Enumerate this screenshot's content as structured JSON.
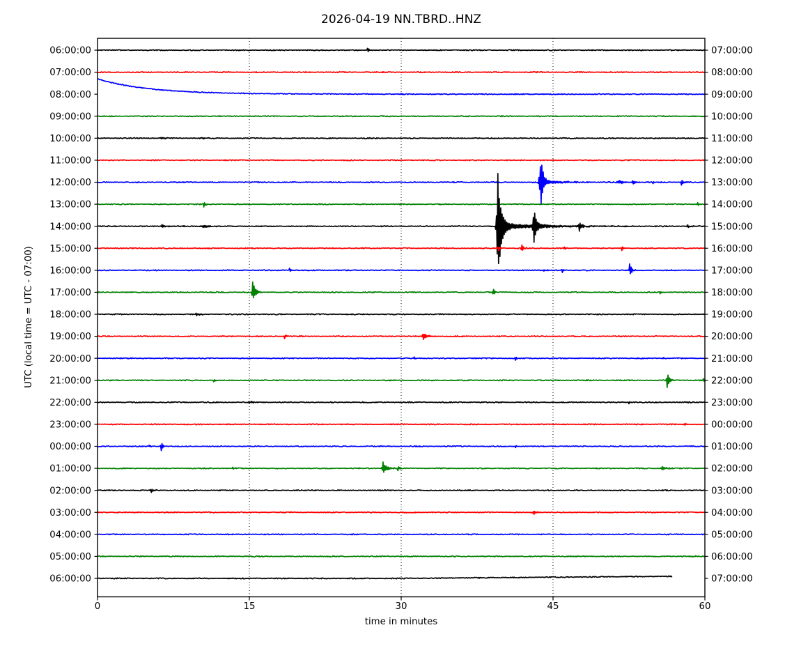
{
  "title": "2026-04-19 NN.TBRD..HNZ",
  "chart_data": {
    "type": "line",
    "variant": "helicorder_dayplot",
    "title": "2026-04-19 NN.TBRD..HNZ",
    "xlabel": "time in minutes",
    "ylabel": "UTC (local time = UTC - 07:00)",
    "x_ticks": [
      "0",
      "15",
      "30",
      "45",
      "60"
    ],
    "x_tick_minutes": [
      0,
      15,
      30,
      45,
      60
    ],
    "xlim": [
      0,
      60
    ],
    "minutes_per_row": 60,
    "grid_minutes": [
      15,
      30,
      45
    ],
    "grid_style": "dotted-vertical",
    "legend": "none",
    "color_cycle": [
      "#000000",
      "#ff0000",
      "#0000ff",
      "#008000"
    ],
    "rows": [
      {
        "left": "06:00:00",
        "right": "07:00:00",
        "color": "#000000",
        "events": [
          {
            "t": 26.7,
            "a": 3,
            "atk": 0.15,
            "dec": 0.15
          }
        ]
      },
      {
        "left": "07:00:00",
        "right": "08:00:00",
        "color": "#ff0000",
        "events": []
      },
      {
        "left": "08:00:00",
        "right": "09:00:00",
        "color": "#0000ff",
        "drift": {
          "amp": 22,
          "tau": 5
        },
        "events": []
      },
      {
        "left": "09:00:00",
        "right": "10:00:00",
        "color": "#008000",
        "events": []
      },
      {
        "left": "10:00:00",
        "right": "11:00:00",
        "color": "#000000",
        "events": [
          {
            "t": 6.3,
            "a": 1.2,
            "atk": 0.4,
            "dec": 0.4
          },
          {
            "t": 10.4,
            "a": 1.0,
            "atk": 0.5,
            "dec": 0.5
          }
        ]
      },
      {
        "left": "11:00:00",
        "right": "12:00:00",
        "color": "#ff0000",
        "events": []
      },
      {
        "left": "12:00:00",
        "right": "13:00:00",
        "color": "#0000ff",
        "events": [
          {
            "t": 43.8,
            "u": 36,
            "dn": 30,
            "atk": 0.35,
            "dec": 0.22,
            "tail": 1.8,
            "ttau": 2.5
          },
          {
            "t": 51.6,
            "a": 2.2,
            "atk": 0.5,
            "dec": 0.5
          },
          {
            "t": 52.9,
            "a": 2.2,
            "atk": 0.3,
            "dec": 0.3
          },
          {
            "t": 54.9,
            "a": 1.8
          },
          {
            "t": 57.7,
            "a": 4.5,
            "atk": 0.15,
            "dec": 0.15
          }
        ]
      },
      {
        "left": "13:00:00",
        "right": "14:00:00",
        "color": "#008000",
        "events": [
          {
            "t": 10.5,
            "a": 3.5,
            "atk": 0.15,
            "dec": 0.15
          },
          {
            "t": 59.3,
            "a": 2.5
          }
        ]
      },
      {
        "left": "14:00:00",
        "right": "15:00:00",
        "color": "#000000",
        "events": [
          {
            "t": 6.4,
            "a": 2.2,
            "atk": 0.3,
            "dec": 0.3
          },
          {
            "t": 10.5,
            "a": 1.6,
            "atk": 0.6,
            "dec": 0.6
          },
          {
            "t": 39.55,
            "u": 72,
            "dn": 82,
            "atk": 0.28,
            "dec": 0.3,
            "tail": 4,
            "ttau": 4.5
          },
          {
            "t": 43.1,
            "u": 24,
            "dn": 21,
            "atk": 0.22,
            "dec": 0.22,
            "tail": 1.4,
            "ttau": 0.9
          },
          {
            "t": 47.6,
            "u": 7,
            "dn": 6,
            "atk": 0.15,
            "dec": 0.18
          },
          {
            "t": 58.3,
            "a": 1.8
          }
        ]
      },
      {
        "left": "15:00:00",
        "right": "16:00:00",
        "color": "#ff0000",
        "events": [
          {
            "t": 39.6,
            "a": 3,
            "atk": 0.12,
            "dec": 0.12
          },
          {
            "t": 41.9,
            "a": 5,
            "atk": 0.15,
            "dec": 0.18
          },
          {
            "t": 46.1,
            "a": 2.2
          },
          {
            "t": 51.8,
            "a": 3.5,
            "atk": 0.12,
            "dec": 0.15
          }
        ]
      },
      {
        "left": "16:00:00",
        "right": "17:00:00",
        "color": "#0000ff",
        "events": [
          {
            "t": 19.0,
            "a": 2.8
          },
          {
            "t": 44.1,
            "a": 1.8
          },
          {
            "t": 45.9,
            "a": 2.8
          },
          {
            "t": 52.6,
            "a": 9,
            "atk": 0.15,
            "dec": 0.18
          }
        ]
      },
      {
        "left": "17:00:00",
        "right": "18:00:00",
        "color": "#008000",
        "events": [
          {
            "t": 15.35,
            "u": 15,
            "dn": 13,
            "atk": 0.2,
            "dec": 0.22,
            "tail": 0.8,
            "ttau": 0.7
          },
          {
            "t": 39.1,
            "a": 3.5,
            "atk": 0.15,
            "dec": 0.15
          },
          {
            "t": 55.6,
            "a": 1.8
          }
        ]
      },
      {
        "left": "18:00:00",
        "right": "19:00:00",
        "color": "#000000",
        "events": [
          {
            "t": 9.8,
            "a": 1.4,
            "atk": 0.5,
            "dec": 0.5
          }
        ]
      },
      {
        "left": "19:00:00",
        "right": "20:00:00",
        "color": "#ff0000",
        "events": [
          {
            "t": 18.5,
            "a": 3.5,
            "atk": 0.12,
            "dec": 0.14
          },
          {
            "t": 32.2,
            "a": 4.5,
            "atk": 0.3,
            "dec": 0.35
          }
        ]
      },
      {
        "left": "20:00:00",
        "right": "21:00:00",
        "color": "#0000ff",
        "events": [
          {
            "t": 31.3,
            "a": 1.8
          },
          {
            "t": 41.3,
            "a": 2.2
          },
          {
            "t": 55.9,
            "a": 1.4
          }
        ]
      },
      {
        "left": "21:00:00",
        "right": "22:00:00",
        "color": "#008000",
        "events": [
          {
            "t": 11.5,
            "a": 1.8
          },
          {
            "t": 56.3,
            "a": 10.5,
            "atk": 0.18,
            "dec": 0.2
          },
          {
            "t": 59.85,
            "a": 2.8,
            "atk": 0.2,
            "dec": 0.2
          }
        ]
      },
      {
        "left": "22:00:00",
        "right": "23:00:00",
        "color": "#000000",
        "events": [
          {
            "t": 15.0,
            "a": 1.3,
            "atk": 0.4,
            "dec": 0.4
          },
          {
            "t": 52.5,
            "a": 1.8
          }
        ]
      },
      {
        "left": "23:00:00",
        "right": "00:00:00",
        "color": "#ff0000",
        "events": [
          {
            "t": 58.0,
            "a": 1.8
          }
        ]
      },
      {
        "left": "00:00:00",
        "right": "01:00:00",
        "color": "#0000ff",
        "events": [
          {
            "t": 5.1,
            "a": 1.8
          },
          {
            "t": 6.3,
            "a": 6.5,
            "atk": 0.12,
            "dec": 0.14
          },
          {
            "t": 41.3,
            "a": 2.2
          }
        ]
      },
      {
        "left": "01:00:00",
        "right": "02:00:00",
        "color": "#008000",
        "events": [
          {
            "t": 13.4,
            "a": 2.2
          },
          {
            "t": 28.2,
            "u": 8,
            "dn": 7,
            "atk": 0.25,
            "dec": 0.3,
            "tail": 0.7,
            "ttau": 0.8
          },
          {
            "t": 29.7,
            "a": 2.5
          },
          {
            "t": 55.8,
            "a": 2.2,
            "atk": 0.4,
            "dec": 0.4
          }
        ]
      },
      {
        "left": "02:00:00",
        "right": "03:00:00",
        "color": "#000000",
        "events": [
          {
            "t": 5.3,
            "a": 2.5,
            "atk": 0.3,
            "dec": 0.3
          }
        ]
      },
      {
        "left": "03:00:00",
        "right": "04:00:00",
        "color": "#ff0000",
        "events": [
          {
            "t": 43.1,
            "a": 3.2,
            "atk": 0.2,
            "dec": 0.2
          }
        ]
      },
      {
        "left": "04:00:00",
        "right": "05:00:00",
        "color": "#0000ff",
        "events": []
      },
      {
        "left": "05:00:00",
        "right": "06:00:00",
        "color": "#008000",
        "events": []
      },
      {
        "left": "06:00:00",
        "right": "07:00:00",
        "color": "#000000",
        "end_min": 56.8,
        "end_rise": 3,
        "events": []
      }
    ]
  }
}
